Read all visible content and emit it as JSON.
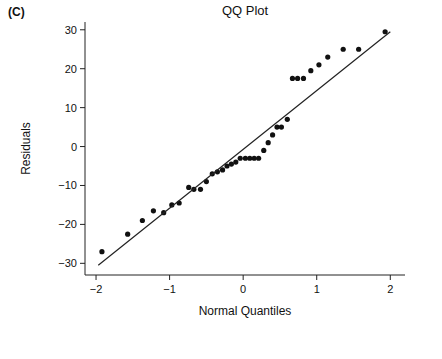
{
  "chart_data": {
    "type": "scatter",
    "label": "(C)",
    "title": "QQ Plot",
    "x_label": "Normal Quantiles",
    "y_label": "Residuals",
    "xlim": [
      -2.15,
      2.2
    ],
    "ylim": [
      -33,
      32
    ],
    "xticks": [
      -2,
      -1,
      0,
      1,
      2
    ],
    "yticks": [
      -30,
      -20,
      -10,
      0,
      10,
      20,
      30
    ],
    "grid": false,
    "series": [
      {
        "type": "scatter",
        "marker": "circle",
        "color": "#111111",
        "x": [
          -1.92,
          -1.57,
          -1.37,
          -1.22,
          -1.08,
          -0.97,
          -0.87,
          -0.74,
          -0.67,
          -0.58,
          -0.5,
          -0.42,
          -0.35,
          -0.28,
          -0.22,
          -0.16,
          -0.1,
          -0.04,
          0.03,
          0.09,
          0.15,
          0.21,
          0.28,
          0.34,
          0.4,
          0.46,
          0.52,
          0.6,
          0.67,
          0.74,
          0.82,
          0.92,
          1.03,
          1.15,
          1.36,
          1.57,
          1.93
        ],
        "values": [
          -27,
          -22.5,
          -19,
          -16.5,
          -17,
          -15,
          -14.5,
          -10.5,
          -11,
          -11,
          -9,
          -7,
          -6.5,
          -6,
          -5,
          -4.5,
          -4,
          -3,
          -3,
          -3,
          -3,
          -3,
          -1,
          1,
          3,
          5,
          5,
          7,
          17.5,
          17.5,
          17.5,
          19.5,
          21,
          23,
          25,
          25,
          29.5
        ]
      },
      {
        "type": "line",
        "line_style": "solid",
        "color": "#222222",
        "x": [
          -1.97,
          2.0
        ],
        "values": [
          -30.5,
          29.5
        ]
      }
    ]
  }
}
